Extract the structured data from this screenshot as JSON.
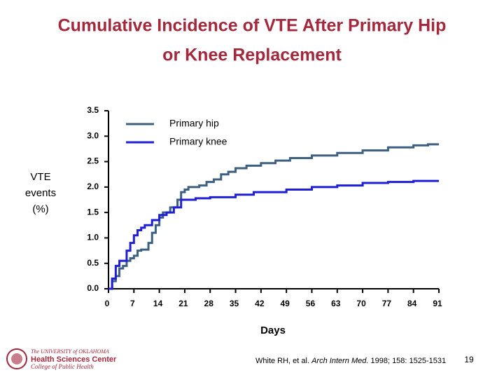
{
  "chart_data": {
    "type": "line",
    "step": true,
    "title_lines": [
      "Cumulative Incidence of VTE After Primary Hip",
      "or Knee Replacement"
    ],
    "ylabel_lines": [
      "VTE",
      "events",
      "(%)"
    ],
    "xlabel": "Days",
    "series": [
      {
        "name": "Primary hip",
        "color": "#3d5f80",
        "x": [
          0,
          1,
          2,
          3,
          4,
          5,
          6,
          7,
          8,
          9,
          11,
          12,
          13,
          14,
          15,
          17,
          19,
          20,
          21,
          22,
          25,
          27,
          29,
          31,
          33,
          35,
          38,
          42,
          46,
          50,
          56,
          63,
          70,
          77,
          84,
          88,
          91
        ],
        "values": [
          0,
          0.15,
          0.25,
          0.4,
          0.45,
          0.55,
          0.6,
          0.65,
          0.75,
          0.77,
          0.9,
          1.1,
          1.25,
          1.4,
          1.5,
          1.6,
          1.75,
          1.9,
          1.95,
          2.0,
          2.03,
          2.1,
          2.15,
          2.25,
          2.3,
          2.37,
          2.42,
          2.47,
          2.52,
          2.57,
          2.62,
          2.67,
          2.72,
          2.78,
          2.82,
          2.84,
          2.84
        ]
      },
      {
        "name": "Primary knee",
        "color": "#1f1fd6",
        "x": [
          0,
          1,
          2,
          3,
          5,
          6,
          7,
          8,
          9,
          10,
          12,
          14,
          16,
          18,
          20,
          24,
          28,
          35,
          40,
          49,
          56,
          63,
          70,
          77,
          84,
          91
        ],
        "values": [
          0,
          0.2,
          0.45,
          0.55,
          0.75,
          0.9,
          1.05,
          1.15,
          1.2,
          1.25,
          1.35,
          1.45,
          1.5,
          1.6,
          1.75,
          1.78,
          1.8,
          1.85,
          1.9,
          1.95,
          2.0,
          2.03,
          2.08,
          2.1,
          2.12,
          2.12
        ]
      }
    ],
    "xlim": [
      0,
      91
    ],
    "xticks": [
      0,
      7,
      14,
      21,
      28,
      35,
      42,
      49,
      56,
      63,
      70,
      77,
      84,
      91
    ],
    "ylim": [
      0,
      3.5
    ],
    "yticks": [
      {
        "value": 0,
        "label": "0.0"
      },
      {
        "value": 0.5,
        "label": "0.5"
      },
      {
        "value": 1,
        "label": "1.0"
      },
      {
        "value": 1.5,
        "label": "1.5"
      },
      {
        "value": 2,
        "label": "2.0"
      },
      {
        "value": 2.5,
        "label": "2.5"
      },
      {
        "value": 3,
        "label": "3.0"
      },
      {
        "value": 3.5,
        "label": "3.5"
      }
    ],
    "legend": "upper left",
    "grid": false
  },
  "slide": {
    "citation": [
      "White RH, et al.",
      "Arch Intern Med.",
      "1998; 158: 1525-1531"
    ],
    "page_number": "19",
    "logo": [
      "The UNIVERSITY of OKLAHOMA",
      "Health Sciences Center",
      "College of Public Health"
    ]
  }
}
